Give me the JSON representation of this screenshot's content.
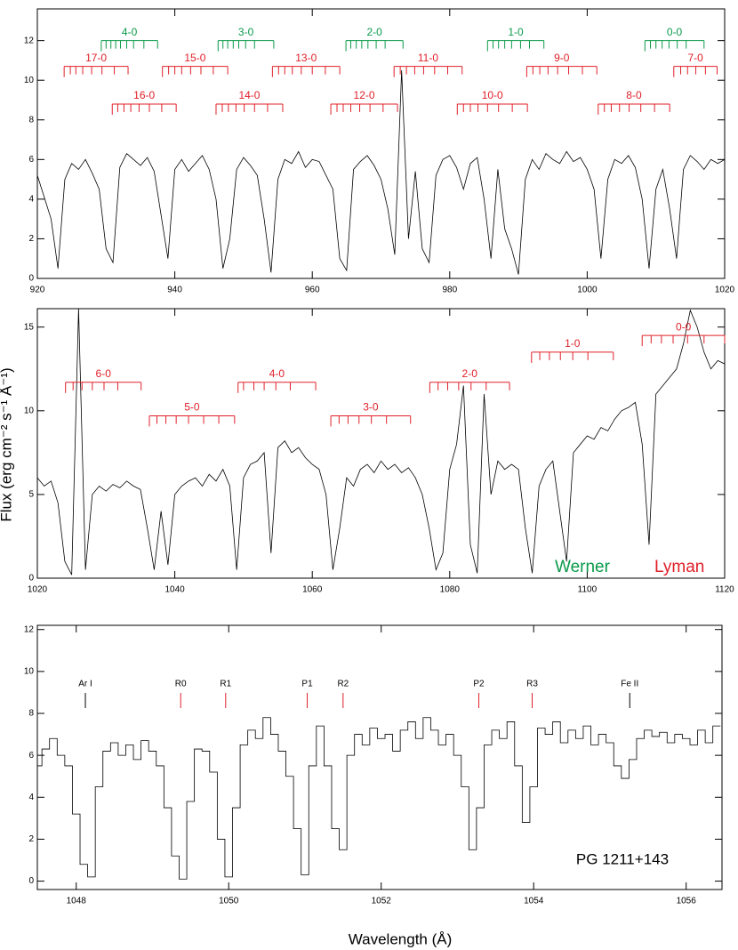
{
  "chart_data": [
    {
      "type": "line",
      "color": "#000000",
      "x": [
        920,
        921,
        922,
        923,
        924,
        925,
        926,
        927,
        928,
        929,
        930,
        931,
        932,
        933,
        934,
        935,
        936,
        937,
        938,
        939,
        940,
        941,
        942,
        943,
        944,
        945,
        946,
        947,
        948,
        949,
        950,
        951,
        952,
        953,
        954,
        955,
        956,
        957,
        958,
        959,
        960,
        961,
        962,
        963,
        964,
        965,
        966,
        967,
        968,
        969,
        970,
        971,
        972,
        973,
        974,
        975,
        976,
        977,
        978,
        979,
        980,
        981,
        982,
        983,
        984,
        985,
        986,
        987,
        988,
        989,
        990,
        991,
        992,
        993,
        994,
        995,
        996,
        997,
        998,
        999,
        1000,
        1001,
        1002,
        1003,
        1004,
        1005,
        1006,
        1007,
        1008,
        1009,
        1010,
        1011,
        1012,
        1013,
        1014,
        1015,
        1016,
        1017,
        1018,
        1019,
        1020
      ],
      "values": [
        5.2,
        4.1,
        3.0,
        0.5,
        5.0,
        5.8,
        5.5,
        6.0,
        5.3,
        4.5,
        1.5,
        0.8,
        5.6,
        6.3,
        6.0,
        5.7,
        6.1,
        5.4,
        3.2,
        1.0,
        5.5,
        6.0,
        5.4,
        5.8,
        6.2,
        5.5,
        4.0,
        0.5,
        2.0,
        5.5,
        6.1,
        5.7,
        5.2,
        3.0,
        0.3,
        5.0,
        6.0,
        5.8,
        6.4,
        5.6,
        6.0,
        5.9,
        5.2,
        4.5,
        1.0,
        0.4,
        5.5,
        5.9,
        6.2,
        5.7,
        5.0,
        3.5,
        1.2,
        10.5,
        2.0,
        5.4,
        1.5,
        0.8,
        5.2,
        6.0,
        6.2,
        5.6,
        4.5,
        5.8,
        6.1,
        4.0,
        1.0,
        5.5,
        2.5,
        1.5,
        0.2,
        5.0,
        6.0,
        5.5,
        6.3,
        6.0,
        5.8,
        6.4,
        5.9,
        6.1,
        5.5,
        4.5,
        1.0,
        5.0,
        6.0,
        5.8,
        6.2,
        5.6,
        4.0,
        0.5,
        4.5,
        5.5,
        3.5,
        1.0,
        5.5,
        6.2,
        5.9,
        5.5,
        6.0,
        5.8,
        6.0
      ],
      "xlim": [
        920,
        1020
      ],
      "ylim": [
        0,
        13.6
      ],
      "xticks": [
        920,
        940,
        960,
        980,
        1000,
        1020
      ],
      "yticks": [
        0,
        2,
        4,
        6,
        8,
        10,
        12
      ],
      "bands": [
        {
          "label": "4-0",
          "color": "#0a9a4a",
          "level": 12.0,
          "lines": [
            929.3,
            930.0,
            930.7,
            931.4,
            932.1,
            933.0,
            934.0,
            935.5,
            937.5
          ]
        },
        {
          "label": "3-0",
          "color": "#0a9a4a",
          "level": 12.0,
          "lines": [
            946.3,
            947.0,
            947.7,
            948.5,
            949.3,
            950.3,
            951.6,
            954.4
          ]
        },
        {
          "label": "2-0",
          "color": "#0a9a4a",
          "level": 12.0,
          "lines": [
            964.9,
            965.6,
            966.4,
            967.2,
            968.1,
            969.3,
            970.6,
            973.2
          ]
        },
        {
          "label": "1-0",
          "color": "#0a9a4a",
          "level": 12.0,
          "lines": [
            985.5,
            986.3,
            987.1,
            988.0,
            989.0,
            990.3,
            991.6,
            993.7
          ]
        },
        {
          "label": "0-0",
          "color": "#0a9a4a",
          "level": 12.0,
          "lines": [
            1008.4,
            1009.2,
            1010.0,
            1010.9,
            1011.9,
            1013.1,
            1014.4,
            1017.0
          ]
        },
        {
          "label": "17-0",
          "color": "#e0202a",
          "level": 10.7,
          "lines": [
            923.9,
            924.8,
            925.6,
            926.6,
            927.9,
            929.4,
            931.2,
            933.2
          ]
        },
        {
          "label": "15-0",
          "color": "#e0202a",
          "level": 10.7,
          "lines": [
            938.2,
            939.1,
            940.0,
            941.0,
            942.3,
            943.8,
            945.6,
            947.7
          ]
        },
        {
          "label": "13-0",
          "color": "#e0202a",
          "level": 10.7,
          "lines": [
            954.2,
            955.1,
            956.0,
            957.1,
            958.4,
            960.0,
            961.9,
            964.0
          ]
        },
        {
          "label": "11-0",
          "color": "#e0202a",
          "level": 10.7,
          "lines": [
            971.9,
            972.8,
            973.7,
            974.9,
            976.2,
            977.8,
            979.7,
            981.8
          ]
        },
        {
          "label": "9-0",
          "color": "#e0202a",
          "level": 10.7,
          "lines": [
            991.2,
            992.1,
            993.1,
            994.3,
            995.7,
            997.3,
            999.3,
            1001.4
          ]
        },
        {
          "label": "7-0",
          "color": "#e0202a",
          "level": 10.7,
          "lines": [
            1012.6,
            1013.6,
            1014.6,
            1015.8,
            1017.2,
            1018.9
          ]
        },
        {
          "label": "16-0",
          "color": "#e0202a",
          "level": 8.8,
          "lines": [
            930.9,
            931.7,
            932.6,
            933.6,
            934.8,
            936.3,
            938.1,
            940.2
          ]
        },
        {
          "label": "14-0",
          "color": "#e0202a",
          "level": 8.8,
          "lines": [
            946.0,
            946.9,
            947.8,
            948.9,
            950.1,
            951.6,
            953.5,
            955.7
          ]
        },
        {
          "label": "12-0",
          "color": "#e0202a",
          "level": 8.8,
          "lines": [
            962.7,
            963.6,
            964.5,
            965.6,
            966.9,
            968.4,
            970.3,
            972.4
          ]
        },
        {
          "label": "10-0",
          "color": "#e0202a",
          "level": 8.8,
          "lines": [
            981.1,
            982.0,
            983.0,
            984.1,
            985.5,
            987.1,
            989.1,
            991.3
          ]
        },
        {
          "label": "8-0",
          "color": "#e0202a",
          "level": 8.8,
          "lines": [
            1001.6,
            1002.5,
            1003.5,
            1004.7,
            1006.1,
            1007.8,
            1009.8,
            1012.0
          ]
        }
      ]
    },
    {
      "type": "line",
      "color": "#000000",
      "ylabel": "Flux (erg cm⁻² s⁻¹ Å⁻¹)",
      "x": [
        1020,
        1021,
        1022,
        1023,
        1024,
        1025,
        1026,
        1027,
        1028,
        1029,
        1030,
        1031,
        1032,
        1033,
        1034,
        1035,
        1036,
        1037,
        1038,
        1039,
        1040,
        1041,
        1042,
        1043,
        1044,
        1045,
        1046,
        1047,
        1048,
        1049,
        1050,
        1051,
        1052,
        1053,
        1054,
        1055,
        1056,
        1057,
        1058,
        1059,
        1060,
        1061,
        1062,
        1063,
        1064,
        1065,
        1066,
        1067,
        1068,
        1069,
        1070,
        1071,
        1072,
        1073,
        1074,
        1075,
        1076,
        1077,
        1078,
        1079,
        1080,
        1081,
        1082,
        1083,
        1084,
        1085,
        1086,
        1087,
        1088,
        1089,
        1090,
        1091,
        1092,
        1093,
        1094,
        1095,
        1096,
        1097,
        1098,
        1099,
        1100,
        1101,
        1102,
        1103,
        1104,
        1105,
        1106,
        1107,
        1108,
        1109,
        1110,
        1111,
        1112,
        1113,
        1114,
        1115,
        1116,
        1117,
        1118,
        1119,
        1120
      ],
      "values": [
        6.0,
        5.5,
        5.8,
        4.5,
        1.0,
        0.2,
        16.1,
        0.5,
        5.0,
        5.5,
        5.2,
        5.6,
        5.4,
        5.8,
        5.5,
        5.3,
        3.0,
        0.5,
        4.0,
        0.8,
        5.0,
        5.5,
        5.8,
        6.0,
        5.5,
        6.2,
        5.8,
        6.5,
        5.5,
        0.5,
        6.0,
        6.8,
        7.0,
        7.5,
        1.5,
        7.8,
        8.2,
        7.5,
        7.8,
        7.2,
        6.8,
        6.5,
        5.0,
        0.5,
        3.0,
        6.0,
        5.5,
        6.5,
        6.8,
        6.3,
        7.0,
        6.5,
        6.8,
        6.3,
        6.6,
        6.0,
        5.0,
        3.0,
        0.5,
        1.5,
        6.5,
        8.0,
        11.5,
        2.0,
        0.3,
        11.0,
        5.0,
        7.0,
        6.5,
        6.8,
        6.5,
        3.0,
        0.3,
        5.5,
        6.5,
        7.0,
        4.0,
        1.0,
        7.5,
        8.0,
        8.5,
        8.3,
        9.0,
        8.8,
        9.5,
        10.0,
        10.2,
        10.5,
        8.0,
        2.0,
        11.0,
        11.5,
        12.0,
        12.5,
        14.0,
        16.0,
        15.0,
        13.5,
        12.5,
        13.0,
        12.8
      ],
      "xlim": [
        1020,
        1120
      ],
      "ylim": [
        0,
        16.1
      ],
      "xticks": [
        1020,
        1040,
        1060,
        1080,
        1100,
        1120
      ],
      "yticks": [
        0,
        5,
        10,
        15
      ],
      "legend": [
        {
          "name": "Werner",
          "color": "#0a9a4a"
        },
        {
          "name": "Lyman",
          "color": "#e0202a"
        }
      ],
      "bands": [
        {
          "label": "6-0",
          "color": "#e0202a",
          "level": 11.7,
          "lines": [
            1024.1,
            1025.2,
            1026.5,
            1028.0,
            1029.7,
            1031.7,
            1035.1
          ]
        },
        {
          "label": "5-0",
          "color": "#e0202a",
          "level": 9.7,
          "lines": [
            1036.3,
            1037.4,
            1038.7,
            1040.2,
            1042.0,
            1044.2,
            1046.4,
            1048.7
          ]
        },
        {
          "label": "4-0",
          "color": "#e0202a",
          "level": 11.7,
          "lines": [
            1049.2,
            1050.0,
            1051.5,
            1053.0,
            1054.7,
            1056.8,
            1060.5
          ]
        },
        {
          "label": "3-0",
          "color": "#e0202a",
          "level": 9.7,
          "lines": [
            1062.7,
            1063.9,
            1065.2,
            1066.8,
            1068.6,
            1070.8,
            1074.3
          ]
        },
        {
          "label": "2-0",
          "color": "#e0202a",
          "level": 11.7,
          "lines": [
            1077.1,
            1078.3,
            1079.7,
            1081.3,
            1083.1,
            1085.3,
            1088.7
          ]
        },
        {
          "label": "1-0",
          "color": "#e0202a",
          "level": 13.5,
          "lines": [
            1091.9,
            1093.1,
            1094.5,
            1096.1,
            1097.9,
            1100.1,
            1103.8
          ]
        },
        {
          "label": "0-0",
          "color": "#e0202a",
          "level": 14.5,
          "lines": [
            1108.0,
            1109.3,
            1110.8,
            1112.5,
            1114.6,
            1117.0,
            1120.0
          ]
        }
      ]
    },
    {
      "type": "line",
      "drawstyle": "steps",
      "color": "#000000",
      "xlabel": "Wavelength (Å)",
      "annotation": "PG 1211+143",
      "x": [
        1047.5,
        1047.6,
        1047.7,
        1047.8,
        1047.9,
        1048.0,
        1048.1,
        1048.2,
        1048.3,
        1048.4,
        1048.5,
        1048.6,
        1048.7,
        1048.8,
        1048.9,
        1049.0,
        1049.1,
        1049.2,
        1049.3,
        1049.4,
        1049.5,
        1049.6,
        1049.7,
        1049.8,
        1049.9,
        1050.0,
        1050.1,
        1050.2,
        1050.3,
        1050.4,
        1050.5,
        1050.6,
        1050.7,
        1050.8,
        1050.9,
        1051.0,
        1051.1,
        1051.2,
        1051.3,
        1051.4,
        1051.5,
        1051.6,
        1051.7,
        1051.8,
        1051.9,
        1052.0,
        1052.1,
        1052.2,
        1052.3,
        1052.4,
        1052.5,
        1052.6,
        1052.7,
        1052.8,
        1052.9,
        1053.0,
        1053.1,
        1053.2,
        1053.3,
        1053.4,
        1053.5,
        1053.6,
        1053.7,
        1053.8,
        1053.9,
        1054.0,
        1054.1,
        1054.2,
        1054.3,
        1054.4,
        1054.5,
        1054.6,
        1054.7,
        1054.8,
        1054.9,
        1055.0,
        1055.1,
        1055.2,
        1055.3,
        1055.4,
        1055.5,
        1055.6,
        1055.7,
        1055.8,
        1055.9,
        1056.0,
        1056.1,
        1056.2,
        1056.3,
        1056.4
      ],
      "values": [
        5.5,
        6.3,
        6.8,
        6.0,
        5.5,
        3.2,
        0.8,
        0.2,
        4.5,
        6.2,
        6.6,
        6.0,
        6.5,
        5.8,
        6.7,
        6.2,
        5.5,
        3.5,
        1.2,
        0.1,
        3.8,
        6.3,
        6.2,
        5.2,
        2.0,
        0.2,
        3.5,
        6.5,
        7.2,
        6.8,
        7.8,
        7.0,
        6.2,
        5.0,
        2.5,
        0.3,
        5.5,
        7.4,
        5.5,
        2.5,
        1.5,
        6.0,
        7.0,
        6.5,
        7.3,
        6.8,
        7.0,
        6.2,
        7.2,
        7.6,
        6.8,
        7.8,
        7.2,
        6.5,
        7.0,
        6.0,
        4.5,
        1.5,
        3.5,
        6.5,
        7.2,
        6.8,
        7.6,
        5.5,
        2.8,
        4.5,
        7.3,
        7.0,
        7.6,
        6.6,
        7.2,
        6.8,
        7.4,
        6.5,
        7.0,
        6.6,
        5.5,
        4.9,
        5.8,
        6.8,
        7.2,
        6.9,
        7.1,
        6.6,
        7.0,
        6.8,
        6.5,
        7.2,
        6.6,
        7.4
      ],
      "xlim": [
        1047.49,
        1056.47
      ],
      "ylim": [
        -0.4,
        12.2
      ],
      "xticks": [
        1048,
        1050,
        1052,
        1054,
        1056
      ],
      "yticks": [
        0,
        2,
        4,
        6,
        8,
        10,
        12
      ],
      "markers": [
        {
          "label": "Ar I",
          "color": "#000000",
          "x": 1048.12
        },
        {
          "label": "R0",
          "color": "#e0202a",
          "x": 1049.37
        },
        {
          "label": "R1",
          "color": "#e0202a",
          "x": 1049.96
        },
        {
          "label": "P1",
          "color": "#e0202a",
          "x": 1051.03
        },
        {
          "label": "R2",
          "color": "#e0202a",
          "x": 1051.5
        },
        {
          "label": "P2",
          "color": "#e0202a",
          "x": 1053.28
        },
        {
          "label": "R3",
          "color": "#e0202a",
          "x": 1053.98
        },
        {
          "label": "Fe II",
          "color": "#000000",
          "x": 1055.26
        }
      ]
    }
  ]
}
